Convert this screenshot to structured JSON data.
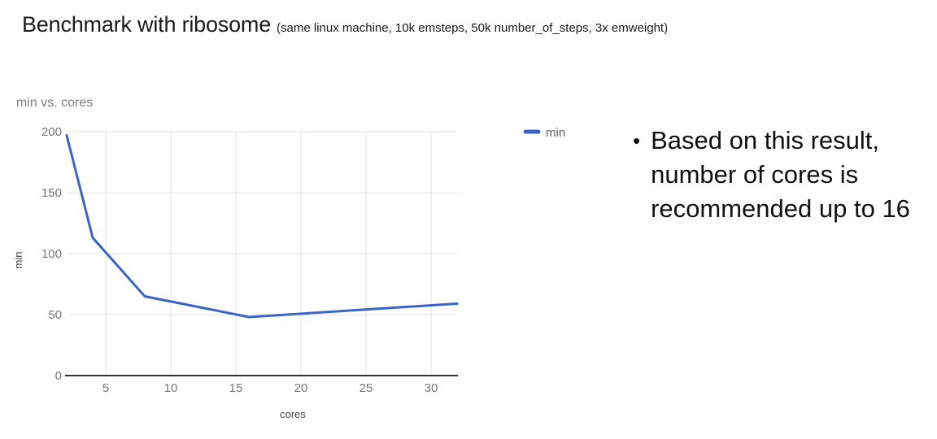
{
  "slide": {
    "title": "Benchmark with ribosome",
    "subtitle": "(same linux machine, 10k emsteps, 50k number_of_steps, 3x emweight)",
    "bullet_glyph": "•",
    "bullet_text": "Based on this result, number of cores is recommended up to 16"
  },
  "chart_data": {
    "type": "line",
    "title": "min vs. cores",
    "xlabel": "cores",
    "ylabel": "min",
    "x": [
      2,
      4,
      8,
      16,
      32
    ],
    "series": [
      {
        "name": "min",
        "values": [
          197,
          113,
          65,
          48,
          59
        ]
      }
    ],
    "xlim": [
      2,
      32
    ],
    "ylim": [
      0,
      200
    ],
    "x_ticks": [
      5,
      10,
      15,
      20,
      25,
      30
    ],
    "y_ticks": [
      0,
      50,
      100,
      150,
      200
    ],
    "grid": true,
    "legend_position": "right",
    "colors": {
      "series": "#3b64c9",
      "grid": "#e3e3e3",
      "axis": "#333333",
      "tick_label": "#757575",
      "axis_title": "#424242",
      "chart_title": "#7d7d7d",
      "legend_text": "#616161"
    }
  }
}
